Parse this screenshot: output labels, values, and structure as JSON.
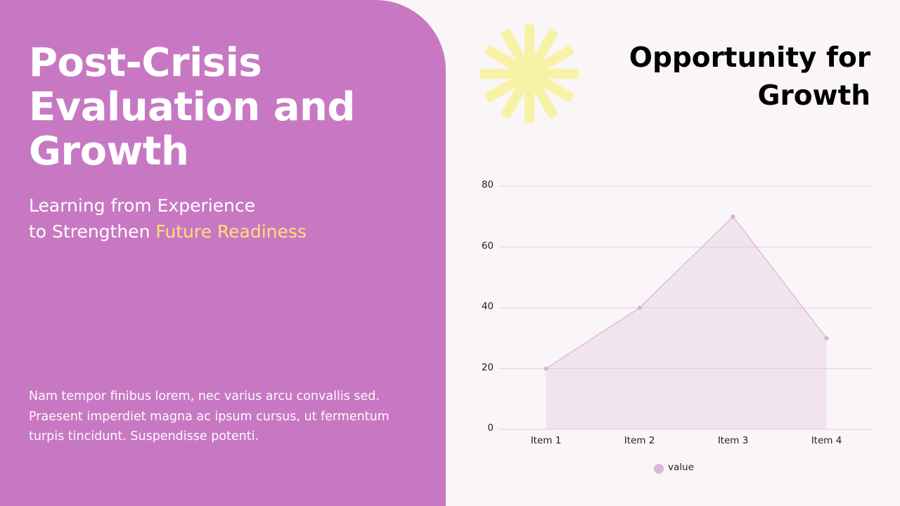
{
  "left_panel": {
    "title_lines": [
      "Post-Crisis",
      "Evaluation and",
      "Growth"
    ],
    "subtitle_line1": "Learning from Experience",
    "subtitle_line2_prefix": "to Strengthen ",
    "subtitle_highlight": "Future Readiness",
    "body": "Nam tempor finibus lorem, nec varius arcu convallis sed. Praesent imperdiet magna ac ipsum cursus, ut fermentum turpis tincidunt. Suspendisse potenti.",
    "background_color": "#c878c3",
    "highlight_color": "#fde07a"
  },
  "right_panel": {
    "title_lines": [
      "Opportunity for",
      "Growth"
    ],
    "decoration": "sunburst-icon",
    "decoration_color": "#f8f2a6"
  },
  "chart_data": {
    "type": "area",
    "title": "",
    "categories": [
      "Item 1",
      "Item 2",
      "Item 3",
      "Item 4"
    ],
    "series": [
      {
        "name": "value",
        "values": [
          20,
          40,
          70,
          30
        ],
        "color": "#dbb6d8"
      }
    ],
    "xlabel": "",
    "ylabel": "",
    "ylim": [
      0,
      80
    ],
    "yticks": [
      "0",
      "20",
      "40",
      "60",
      "80"
    ],
    "grid": true,
    "legend_position": "bottom"
  }
}
